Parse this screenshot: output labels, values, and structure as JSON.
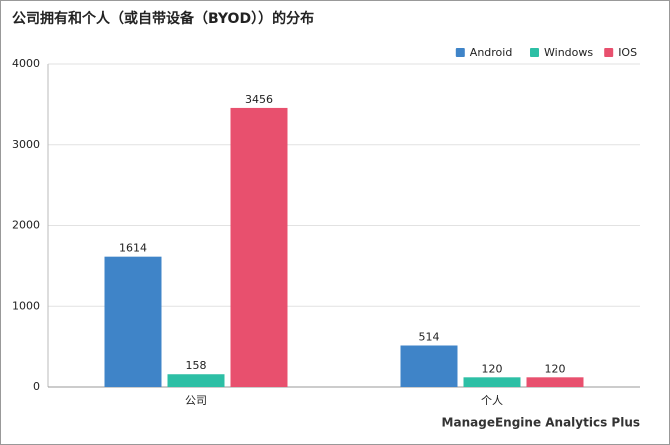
{
  "chart_data": {
    "type": "bar",
    "title": "公司拥有和个人（或自带设备（BYOD））的分布",
    "categories": [
      "公司",
      "个人"
    ],
    "series": [
      {
        "name": "Android",
        "color": "#3f84c8",
        "values": [
          1614,
          514
        ]
      },
      {
        "name": "Windows",
        "color": "#2dbfa5",
        "values": [
          158,
          120
        ]
      },
      {
        "name": "IOS",
        "color": "#e8506e",
        "values": [
          3456,
          120
        ]
      }
    ],
    "ylim": [
      0,
      4000
    ],
    "yticks": [
      0,
      1000,
      2000,
      3000,
      4000
    ],
    "grid": true,
    "legend": "top-right",
    "branding": "ManageEngine Analytics Plus"
  }
}
